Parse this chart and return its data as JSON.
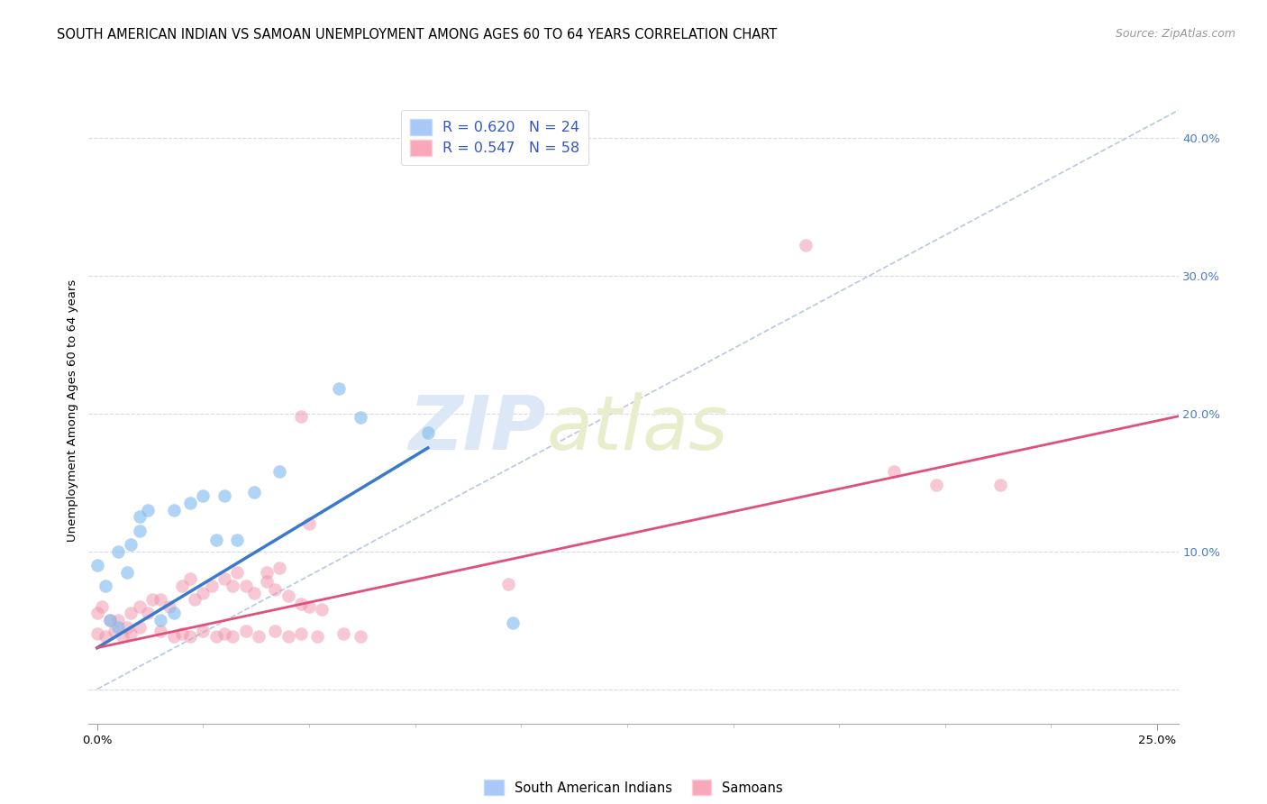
{
  "title": "SOUTH AMERICAN INDIAN VS SAMOAN UNEMPLOYMENT AMONG AGES 60 TO 64 YEARS CORRELATION CHART",
  "source": "Source: ZipAtlas.com",
  "ylabel_label": "Unemployment Among Ages 60 to 64 years",
  "ytick_labels": [
    "",
    "10.0%",
    "20.0%",
    "30.0%",
    "40.0%"
  ],
  "ytick_vals": [
    0.0,
    0.1,
    0.2,
    0.3,
    0.4
  ],
  "xlim": [
    -0.002,
    0.255
  ],
  "ylim": [
    -0.025,
    0.43
  ],
  "legend_entries": [
    {
      "label": "R = 0.620   N = 24",
      "color": "#a8c8f8"
    },
    {
      "label": "R = 0.547   N = 58",
      "color": "#f8a8b8"
    }
  ],
  "legend_bottom": [
    "South American Indians",
    "Samoans"
  ],
  "blue_scatter": [
    [
      0.0,
      0.09
    ],
    [
      0.002,
      0.075
    ],
    [
      0.005,
      0.1
    ],
    [
      0.007,
      0.085
    ],
    [
      0.01,
      0.125
    ],
    [
      0.012,
      0.13
    ],
    [
      0.018,
      0.13
    ],
    [
      0.022,
      0.135
    ],
    [
      0.01,
      0.115
    ],
    [
      0.008,
      0.105
    ],
    [
      0.025,
      0.14
    ],
    [
      0.03,
      0.14
    ],
    [
      0.028,
      0.108
    ],
    [
      0.033,
      0.108
    ],
    [
      0.037,
      0.143
    ],
    [
      0.043,
      0.158
    ],
    [
      0.057,
      0.218
    ],
    [
      0.062,
      0.197
    ],
    [
      0.078,
      0.186
    ],
    [
      0.098,
      0.048
    ],
    [
      0.003,
      0.05
    ],
    [
      0.005,
      0.045
    ],
    [
      0.015,
      0.05
    ],
    [
      0.018,
      0.055
    ]
  ],
  "pink_scatter": [
    [
      0.0,
      0.055
    ],
    [
      0.001,
      0.06
    ],
    [
      0.003,
      0.05
    ],
    [
      0.005,
      0.05
    ],
    [
      0.007,
      0.045
    ],
    [
      0.008,
      0.055
    ],
    [
      0.01,
      0.06
    ],
    [
      0.012,
      0.055
    ],
    [
      0.013,
      0.065
    ],
    [
      0.015,
      0.065
    ],
    [
      0.017,
      0.06
    ],
    [
      0.02,
      0.075
    ],
    [
      0.022,
      0.08
    ],
    [
      0.023,
      0.065
    ],
    [
      0.025,
      0.07
    ],
    [
      0.027,
      0.075
    ],
    [
      0.03,
      0.08
    ],
    [
      0.032,
      0.075
    ],
    [
      0.033,
      0.085
    ],
    [
      0.035,
      0.075
    ],
    [
      0.037,
      0.07
    ],
    [
      0.04,
      0.078
    ],
    [
      0.042,
      0.072
    ],
    [
      0.045,
      0.068
    ],
    [
      0.048,
      0.062
    ],
    [
      0.05,
      0.06
    ],
    [
      0.053,
      0.058
    ],
    [
      0.04,
      0.085
    ],
    [
      0.043,
      0.088
    ],
    [
      0.05,
      0.12
    ],
    [
      0.048,
      0.198
    ],
    [
      0.0,
      0.04
    ],
    [
      0.002,
      0.038
    ],
    [
      0.004,
      0.042
    ],
    [
      0.006,
      0.038
    ],
    [
      0.008,
      0.04
    ],
    [
      0.01,
      0.045
    ],
    [
      0.015,
      0.042
    ],
    [
      0.018,
      0.038
    ],
    [
      0.02,
      0.04
    ],
    [
      0.022,
      0.038
    ],
    [
      0.025,
      0.042
    ],
    [
      0.028,
      0.038
    ],
    [
      0.03,
      0.04
    ],
    [
      0.032,
      0.038
    ],
    [
      0.035,
      0.042
    ],
    [
      0.038,
      0.038
    ],
    [
      0.042,
      0.042
    ],
    [
      0.045,
      0.038
    ],
    [
      0.048,
      0.04
    ],
    [
      0.052,
      0.038
    ],
    [
      0.058,
      0.04
    ],
    [
      0.062,
      0.038
    ],
    [
      0.097,
      0.076
    ],
    [
      0.167,
      0.322
    ],
    [
      0.188,
      0.158
    ],
    [
      0.198,
      0.148
    ],
    [
      0.213,
      0.148
    ]
  ],
  "blue_line_x": [
    0.0,
    0.078
  ],
  "blue_line_y": [
    0.03,
    0.175
  ],
  "pink_line_x": [
    0.0,
    0.255
  ],
  "pink_line_y": [
    0.03,
    0.198
  ],
  "dashed_line_x": [
    0.0,
    0.255
  ],
  "dashed_line_y": [
    0.0,
    0.42
  ],
  "scatter_size": 110,
  "blue_color": "#85bdf0",
  "pink_color": "#f090aa",
  "blue_alpha": 0.65,
  "pink_alpha": 0.5,
  "bg_color": "#ffffff",
  "grid_color": "#d8d8e8",
  "title_fontsize": 10.5,
  "axis_label_fontsize": 9.5,
  "tick_fontsize": 9.5,
  "source_fontsize": 9,
  "watermark_zip": "ZIP",
  "watermark_atlas": "atlas",
  "watermark_color": "#dce8f5",
  "watermark_fontsize": 60
}
